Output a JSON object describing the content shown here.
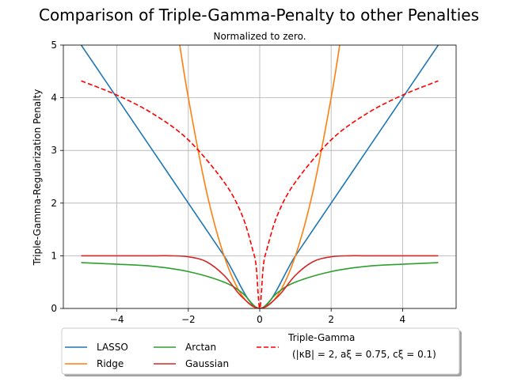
{
  "chart_data": {
    "type": "line",
    "title": "Comparison of Triple-Gamma-Penalty to other Penalties",
    "subtitle": "Normalized to zero.",
    "xlabel": "",
    "ylabel": "Triple-Gamma-Regularization Penalty",
    "xlim": [
      -5.5,
      5.5
    ],
    "ylim": [
      0,
      5
    ],
    "xticks": [
      -4,
      -2,
      0,
      2,
      4
    ],
    "xtick_labels": [
      "−4",
      "−2",
      "0",
      "2",
      "4"
    ],
    "yticks": [
      0,
      1,
      2,
      3,
      4,
      5
    ],
    "ytick_labels": [
      "0",
      "1",
      "2",
      "3",
      "4",
      "5"
    ],
    "grid": true,
    "legend_position": "below-plot",
    "series": [
      {
        "name": "LASSO",
        "color": "#1f77b4",
        "style": "solid",
        "x": [
          -5,
          -4,
          -3,
          -2,
          -1,
          0,
          1,
          2,
          3,
          4,
          5
        ],
        "y": [
          5,
          4,
          3,
          2,
          1,
          0,
          1,
          2,
          3,
          4,
          5
        ]
      },
      {
        "name": "Ridge",
        "color": "#ff7f0e",
        "style": "solid",
        "x": [
          -2.24,
          -2,
          -1.5,
          -1,
          -0.5,
          0,
          0.5,
          1,
          1.5,
          2,
          2.24
        ],
        "y": [
          5.0,
          4.0,
          2.25,
          1.0,
          0.25,
          0,
          0.25,
          1.0,
          2.25,
          4.0,
          5.0
        ]
      },
      {
        "name": "Arctan",
        "color": "#2ca02c",
        "style": "solid",
        "x": [
          -5,
          -4,
          -3,
          -2,
          -1,
          -0.5,
          0,
          0.5,
          1,
          2,
          3,
          4,
          5
        ],
        "y": [
          0.87,
          0.84,
          0.8,
          0.7,
          0.5,
          0.3,
          0,
          0.3,
          0.5,
          0.7,
          0.8,
          0.84,
          0.87
        ]
      },
      {
        "name": "Gaussian",
        "color": "#d62728",
        "style": "solid",
        "x": [
          -5,
          -3,
          -2.5,
          -2,
          -1.5,
          -1,
          -0.5,
          0,
          0.5,
          1,
          1.5,
          2,
          2.5,
          3,
          5
        ],
        "y": [
          1.0,
          1.0,
          1.0,
          0.98,
          0.89,
          0.63,
          0.22,
          0,
          0.22,
          0.63,
          0.89,
          0.98,
          1.0,
          1.0,
          1.0
        ]
      },
      {
        "name": "Triple-Gamma",
        "legend_lines": [
          "Triple-Gamma",
          "(|κB| = 2, aξ = 0.75, cξ = 0.1)"
        ],
        "color": "#ff0000",
        "style": "dashed",
        "x": [
          -5,
          -4,
          -3,
          -2,
          -1,
          -0.5,
          -0.2,
          -0.1,
          0,
          0.1,
          0.2,
          0.5,
          1,
          2,
          3,
          4,
          5
        ],
        "y": [
          4.32,
          4.05,
          3.7,
          3.2,
          2.4,
          1.78,
          1.12,
          0.8,
          0,
          0.8,
          1.12,
          1.78,
          2.4,
          3.2,
          3.7,
          4.05,
          4.32
        ]
      }
    ]
  }
}
